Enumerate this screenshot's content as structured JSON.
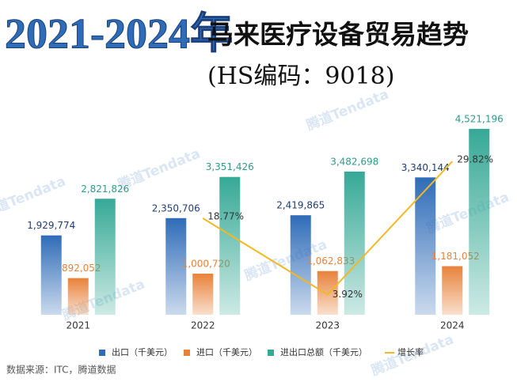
{
  "chart_data": {
    "type": "bar",
    "title_highlight": "2021-2024年",
    "title": "马来医疗设备贸易趋势",
    "subtitle": "(HS编码：9018)",
    "source": "数据来源：ITC，腾道数据",
    "categories": [
      "2021",
      "2022",
      "2023",
      "2024"
    ],
    "series": [
      {
        "name": "出口（千美元）",
        "color": "#2f6cb8",
        "values": [
          1929774,
          2350706,
          2419865,
          3340144
        ],
        "value_labels": [
          "1,929,774",
          "2,350,706",
          "2,419,865",
          "3,340,144"
        ]
      },
      {
        "name": "进口（千美元）",
        "color": "#e8823a",
        "values": [
          892052,
          1000720,
          1062833,
          1181052
        ],
        "value_labels": [
          "892,052",
          "1,000,720",
          "1,062,833",
          "1,181,052"
        ]
      },
      {
        "name": "进出口总额（千美元）",
        "color": "#36a996",
        "values": [
          2821826,
          3351426,
          3482698,
          4521196
        ],
        "value_labels": [
          "2,821,826",
          "3,351,426",
          "3,482,698",
          "4,521,196"
        ]
      },
      {
        "name": "增长率",
        "color": "#f2b824",
        "type": "line",
        "axis": "y2",
        "values": [
          null,
          18.77,
          3.92,
          29.82
        ],
        "value_labels": [
          null,
          "18.77%",
          "3.92%",
          "29.82%"
        ]
      }
    ],
    "ylim": [
      0,
      5000000
    ],
    "y2lim": [
      0,
      40
    ],
    "legend": "bottom"
  },
  "watermark": "腾道Tendata"
}
